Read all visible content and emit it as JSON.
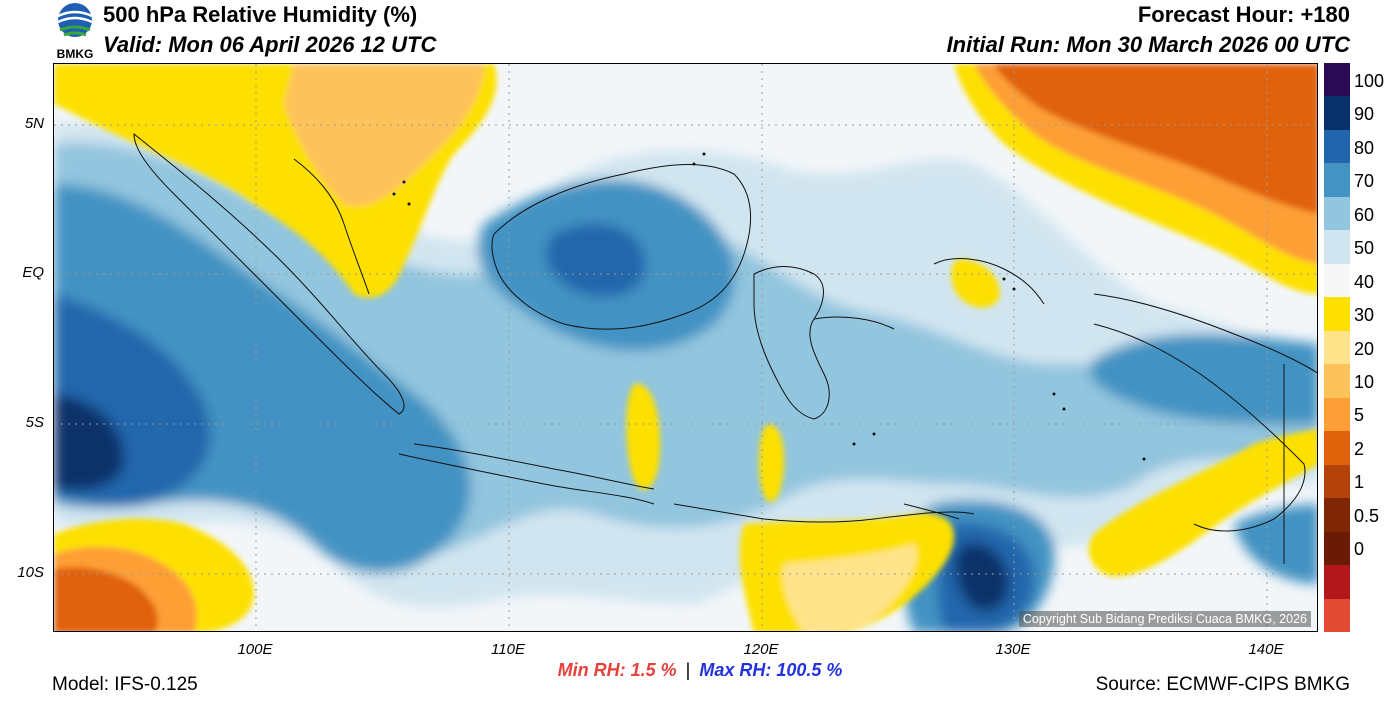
{
  "header": {
    "title": "500 hPa Relative Humidity (%)",
    "valid": "Valid: Mon 06 April 2026 12 UTC",
    "forecast_hour": "Forecast Hour: +180",
    "initial_run": "Initial Run: Mon 30 March 2026 00 UTC",
    "logo_text": "BMKG"
  },
  "axes": {
    "lat_labels": [
      "5N",
      "EQ",
      "5S",
      "10S"
    ],
    "lon_labels": [
      "100E",
      "110E",
      "120E",
      "130E",
      "140E"
    ]
  },
  "colorbar": {
    "labels": [
      "100",
      "90",
      "80",
      "70",
      "60",
      "50",
      "40",
      "30",
      "20",
      "10",
      "5",
      "2",
      "1",
      "0.5",
      "0"
    ],
    "colors": [
      "#2b0a55",
      "#08306b",
      "#2166ac",
      "#4393c3",
      "#92c5de",
      "#d1e5f0",
      "#f7f7f7",
      "#fde000",
      "#fee38b",
      "#fdc25a",
      "#fd9f36",
      "#e0620a",
      "#b3420b",
      "#7f2704",
      "#6b1a06",
      "#b2171b",
      "#e34a33"
    ]
  },
  "stats": {
    "min_label": "Min RH:",
    "min_value": "1.5 %",
    "separator": "|",
    "max_label": "Max RH:",
    "max_value": "100.5 %",
    "min_color": "#e8403a",
    "max_color": "#2233dd"
  },
  "footer": {
    "model": "Model: IFS-0.125",
    "source": "Source: ECMWF-CIPS BMKG",
    "copyright": "Copyright Sub Bidang Prediksi Cuaca BMKG, 2026"
  }
}
